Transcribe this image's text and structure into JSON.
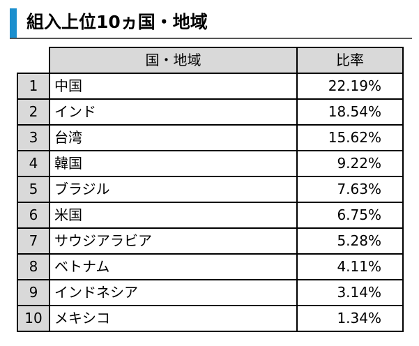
{
  "title": "組入上位10ヵ国・地域",
  "table": {
    "headers": {
      "rank": "",
      "name": "国・地域",
      "ratio": "比率"
    },
    "rows": [
      {
        "rank": "1",
        "name": "中国",
        "ratio": "22.19%"
      },
      {
        "rank": "2",
        "name": "インド",
        "ratio": "18.54%"
      },
      {
        "rank": "3",
        "name": "台湾",
        "ratio": "15.62%"
      },
      {
        "rank": "4",
        "name": "韓国",
        "ratio": "9.22%"
      },
      {
        "rank": "5",
        "name": "ブラジル",
        "ratio": "7.63%"
      },
      {
        "rank": "6",
        "name": "米国",
        "ratio": "6.75%"
      },
      {
        "rank": "7",
        "name": "サウジアラビア",
        "ratio": "5.28%"
      },
      {
        "rank": "8",
        "name": "ベトナム",
        "ratio": "4.11%"
      },
      {
        "rank": "9",
        "name": "インドネシア",
        "ratio": "3.14%"
      },
      {
        "rank": "10",
        "name": "メキシコ",
        "ratio": "1.34%"
      }
    ]
  },
  "colors": {
    "accent": "#1b8fce",
    "header_bg": "#d9d9d9",
    "rank_bg": "#d9d9d9"
  }
}
